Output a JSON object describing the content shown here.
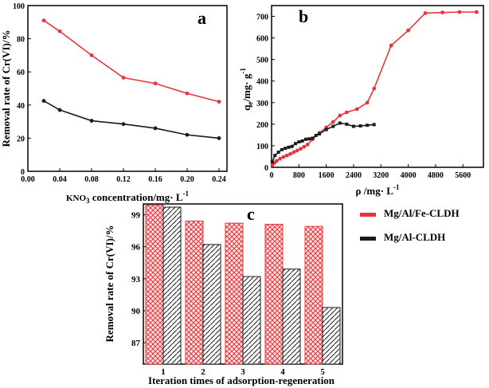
{
  "chart_data": [
    {
      "type": "line",
      "panel_label": "a",
      "xlabel_main": "KNO",
      "xlabel_sub": "3",
      "xlabel_rest": " concentration/mg· L",
      "xlabel_sup": "-1",
      "ylabel": "Removal rate of Cr(VI)/%",
      "xlim": [
        0,
        0.25
      ],
      "ylim": [
        0,
        100
      ],
      "xticks": [
        "0.00",
        "0.04",
        "0.08",
        "0.12",
        "0.16",
        "0.20",
        "0.24"
      ],
      "xtick_values": [
        0,
        0.04,
        0.08,
        0.12,
        0.16,
        0.2,
        0.24
      ],
      "yticks": [
        "0",
        "20",
        "40",
        "60",
        "80",
        "100"
      ],
      "ytick_values": [
        0,
        20,
        40,
        60,
        80,
        100
      ],
      "series": [
        {
          "name": "Mg/Al/Fe-CLDH",
          "color": "#e8343a",
          "x": [
            0.02,
            0.04,
            0.08,
            0.12,
            0.16,
            0.2,
            0.24
          ],
          "y": [
            91,
            84.5,
            70,
            56.5,
            53,
            47,
            42
          ]
        },
        {
          "name": "Mg/Al-CLDH",
          "color": "#1a1a1a",
          "x": [
            0.02,
            0.04,
            0.08,
            0.12,
            0.16,
            0.2,
            0.24
          ],
          "y": [
            42.5,
            37,
            30.5,
            28.5,
            26,
            22,
            20
          ]
        }
      ]
    },
    {
      "type": "line",
      "panel_label": "b",
      "xlabel_main": "ρ /mg· L",
      "xlabel_sup": "-1",
      "ylabel_main": "q",
      "ylabel_sub": "e",
      "ylabel_rest": "/mg· g",
      "ylabel_sup": "-1",
      "xlim": [
        0,
        6200
      ],
      "ylim": [
        0,
        750
      ],
      "xticks": [
        "0",
        "800",
        "1600",
        "2400",
        "3200",
        "4000",
        "4800",
        "5600"
      ],
      "xtick_values": [
        0,
        800,
        1600,
        2400,
        3200,
        4000,
        4800,
        5600
      ],
      "yticks": [
        "0",
        "100",
        "200",
        "300",
        "400",
        "500",
        "600",
        "700"
      ],
      "ytick_values": [
        0,
        100,
        200,
        300,
        400,
        500,
        600,
        700
      ],
      "series": [
        {
          "name": "Mg/Al/Fe-CLDH",
          "color": "#e8343a",
          "x": [
            20,
            80,
            150,
            250,
            350,
            450,
            550,
            650,
            750,
            850,
            950,
            1050,
            1200,
            1400,
            1600,
            1800,
            2000,
            2200,
            2500,
            2800,
            3000,
            3500,
            4000,
            4500,
            5000,
            5500,
            6000
          ],
          "y": [
            10,
            20,
            30,
            40,
            48,
            55,
            62,
            70,
            78,
            86,
            95,
            105,
            130,
            160,
            185,
            210,
            240,
            255,
            270,
            300,
            365,
            565,
            635,
            715,
            718,
            720,
            720
          ]
        },
        {
          "name": "Mg/Al-CLDH",
          "color": "#1a1a1a",
          "x": [
            20,
            100,
            200,
            300,
            400,
            500,
            600,
            700,
            800,
            900,
            1000,
            1100,
            1200,
            1300,
            1400,
            1600,
            1800,
            2000,
            2200,
            2400,
            2600,
            2800,
            3000
          ],
          "y": [
            25,
            55,
            70,
            82,
            88,
            93,
            97,
            110,
            118,
            122,
            130,
            132,
            135,
            148,
            155,
            175,
            190,
            205,
            200,
            190,
            192,
            195,
            198
          ]
        }
      ]
    },
    {
      "type": "bar",
      "panel_label": "c",
      "xlabel": "Iteration times of adsorption-regeneration",
      "ylabel": "Removal rate of Cr(VI)/%",
      "categories": [
        "1",
        "2",
        "3",
        "4",
        "5"
      ],
      "ylim": [
        85,
        100
      ],
      "yticks": [
        "87",
        "90",
        "93",
        "96",
        "99"
      ],
      "ytick_values": [
        87,
        90,
        93,
        96,
        99
      ],
      "legend_position": "right",
      "series": [
        {
          "name": "Mg/Al/Fe-CLDH",
          "color": "#e8343a",
          "values": [
            99.9,
            98.4,
            98.2,
            98.1,
            97.9
          ]
        },
        {
          "name": "Mg/Al-CLDH",
          "color": "#1a1a1a",
          "values": [
            99.7,
            96.2,
            93.2,
            93.9,
            90.3
          ]
        }
      ]
    }
  ]
}
